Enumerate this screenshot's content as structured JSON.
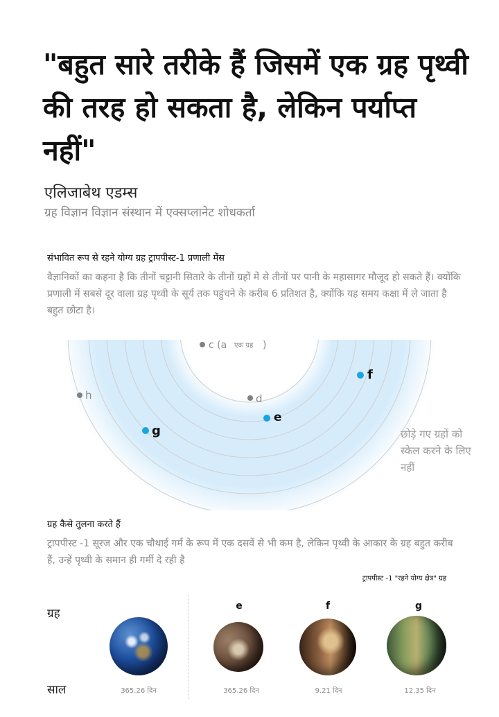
{
  "quote": "\"बहुत सारे तरीके हैं जिसमें एक ग्रह पृथ्वी की तरह हो सकता है, लेकिन पर्याप्त नहीं\"",
  "author": {
    "name": "एलिजाबेथ एडम्स",
    "role": "ग्रह विज्ञान विज्ञान संस्थान में एक्सप्लानेट शोधकर्ता"
  },
  "section1": {
    "title": "संभावित रूप से रहने योग्य ग्रह ट्रापपीस्ट-1 प्रणाली मेंस",
    "body": "वैज्ञानिकों का कहना है कि तीनों चट्टानी सितारे के तीनों ग्रहों में से तीनों पर पानी के महासागर मौजूद हो सकते हैं। क्योंकि प्रणाली में सबसे दूर वाला ग्रह पृथ्वी के सूर्य तक पहुंचने के करीब 6 प्रतिशत है, क्योंकि यह समय कक्षा में ले जाता है बहुत छोटा है।"
  },
  "diagram": {
    "planets": [
      {
        "id": "c",
        "label": "c (a",
        "sub": "एक ग्रह",
        "close": ")",
        "habitable": false
      },
      {
        "id": "d",
        "label": "d",
        "habitable": false
      },
      {
        "id": "e",
        "label": "e",
        "habitable": true
      },
      {
        "id": "f",
        "label": "f",
        "habitable": true
      },
      {
        "id": "g",
        "label": "g",
        "habitable": true
      },
      {
        "id": "h",
        "label": "h",
        "habitable": false
      }
    ],
    "note": "छोड़े गए ग्रहों को स्केल करने के लिए नहीं",
    "colors": {
      "habitable_dot": "#1aa3e0",
      "other_dot": "#808080",
      "zone": "#d6ecfb",
      "orbit": "#cfcfcf"
    }
  },
  "section2": {
    "title": "ग्रह कैसे तुलना करते हैं",
    "body": "ट्रापपीस्ट -1 सूरज और एक चौथाई गर्म के रूप में एक दसवें से भी कम है, लेकिन पृथ्वी के आकार के ग्रह बहुत करीब हैं, उन्हें पृथ्वी के समान ही गर्मी दे रही है"
  },
  "comparison": {
    "zone_caption": "ट्रापपीस्ट -1 \"रहने योग्य क्षेत्र\" ग्रह",
    "row_planet": "ग्रह",
    "row_year": "साल",
    "planets": [
      {
        "name": "",
        "year": "365.26 दिन"
      },
      {
        "name": "e",
        "year": "365.26 दिन"
      },
      {
        "name": "f",
        "year": "9.21 दिन"
      },
      {
        "name": "g",
        "year": "12.35  दिन"
      }
    ]
  }
}
